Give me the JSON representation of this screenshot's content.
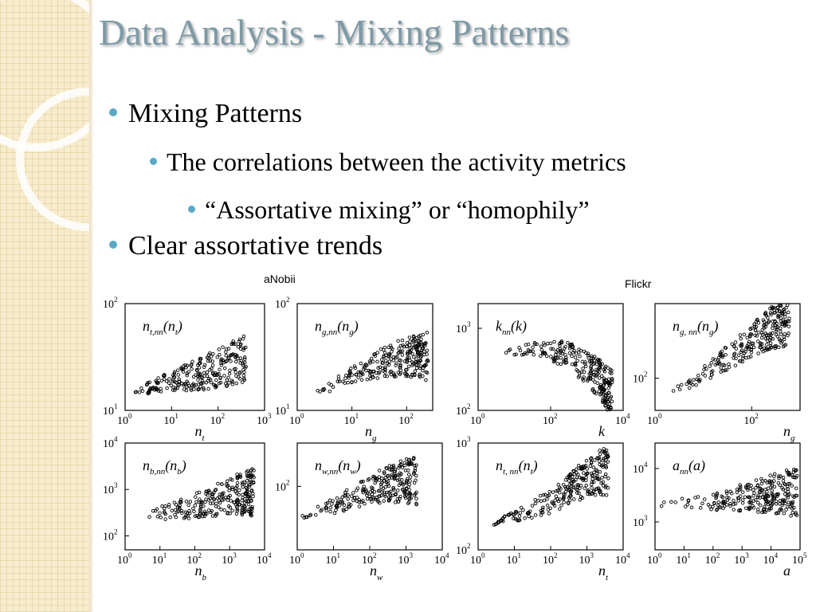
{
  "slide": {
    "title": "Data Analysis - Mixing Patterns",
    "bullets": [
      {
        "text": "Mixing Patterns",
        "level": 1
      },
      {
        "text": "The correlations between the activity metrics",
        "level": 2
      },
      {
        "text": "“Assortative mixing” or “homophily”",
        "level": 3
      },
      {
        "text": "Clear assortative trends",
        "level": 1
      }
    ],
    "accent_color": "#5aa9c6",
    "title_color": "#7d9aa6"
  },
  "figure": {
    "left_label": "aNobii",
    "right_label": "Flickr"
  },
  "chart_data": [
    {
      "type": "scatter",
      "group": "aNobii",
      "label_main": "n",
      "label_sub": "t,nn",
      "label_arg": "n",
      "label_arg_sub": "t",
      "xlabel_main": "n",
      "xlabel_sub": "t",
      "xscale": "log",
      "yscale": "log",
      "xlim": [
        1,
        1000
      ],
      "ylim": [
        10,
        100
      ],
      "x_ticks": [
        "10",
        "10",
        "10",
        "10"
      ],
      "x_tick_exp": [
        "0",
        "1",
        "2",
        "3"
      ],
      "y_ticks": [
        "10",
        "10"
      ],
      "y_tick_exp": [
        "2",
        "1"
      ],
      "trend": [
        [
          1.5,
          15
        ],
        [
          5,
          17
        ],
        [
          20,
          20
        ],
        [
          100,
          25
        ],
        [
          400,
          30
        ]
      ]
    },
    {
      "type": "scatter",
      "group": "aNobii",
      "label_main": "n",
      "label_sub": "g,nn",
      "label_arg": "n",
      "label_arg_sub": "g",
      "xlabel_main": "n",
      "xlabel_sub": "g",
      "xscale": "log",
      "yscale": "log",
      "xlim": [
        1,
        300
      ],
      "ylim": [
        10,
        100
      ],
      "x_ticks": [
        "10",
        "10",
        "10"
      ],
      "x_tick_exp": [
        "0",
        "1",
        "2"
      ],
      "y_ticks": [
        "10",
        "10"
      ],
      "y_tick_exp": [
        "2",
        "1"
      ],
      "trend": [
        [
          2,
          14
        ],
        [
          8,
          20
        ],
        [
          30,
          27
        ],
        [
          100,
          32
        ],
        [
          250,
          33
        ]
      ]
    },
    {
      "type": "scatter",
      "group": "Flickr",
      "label_main": "k",
      "label_sub": "nn",
      "label_arg": "k",
      "label_arg_sub": "",
      "xlabel_main": "k",
      "xlabel_sub": "",
      "xscale": "log",
      "yscale": "log",
      "xlim": [
        1,
        10000
      ],
      "ylim": [
        100,
        2000
      ],
      "x_ticks": [
        "10",
        "10",
        "10"
      ],
      "x_tick_exp": [
        "0",
        "2",
        "4"
      ],
      "y_ticks": [
        "10",
        "10"
      ],
      "y_tick_exp": [
        "3",
        "2"
      ],
      "trend": [
        [
          5,
          500
        ],
        [
          50,
          560
        ],
        [
          300,
          480
        ],
        [
          2000,
          250
        ],
        [
          5000,
          150
        ]
      ]
    },
    {
      "type": "scatter",
      "group": "Flickr",
      "label_main": "n",
      "label_sub": "g, nn",
      "label_arg": "n",
      "label_arg_sub": "g",
      "xlabel_main": "n",
      "xlabel_sub": "g",
      "xscale": "log",
      "yscale": "log",
      "xlim": [
        1,
        1000
      ],
      "ylim": [
        50,
        500
      ],
      "x_ticks": [
        "10",
        "10"
      ],
      "x_tick_exp": [
        "0",
        "2"
      ],
      "y_ticks": [
        "10"
      ],
      "y_tick_exp": [
        "2"
      ],
      "trend": [
        [
          2,
          70
        ],
        [
          10,
          110
        ],
        [
          50,
          180
        ],
        [
          200,
          280
        ],
        [
          600,
          350
        ]
      ]
    },
    {
      "type": "scatter",
      "group": "aNobii",
      "label_main": "n",
      "label_sub": "b,nn",
      "label_arg": "n",
      "label_arg_sub": "b",
      "xlabel_main": "n",
      "xlabel_sub": "b",
      "xscale": "log",
      "yscale": "log",
      "xlim": [
        1,
        10000
      ],
      "ylim": [
        50,
        10000
      ],
      "x_ticks": [
        "10",
        "10",
        "10",
        "10",
        "10"
      ],
      "x_tick_exp": [
        "0",
        "1",
        "2",
        "3",
        "4"
      ],
      "y_ticks": [
        "10",
        "10",
        "10"
      ],
      "y_tick_exp": [
        "4",
        "3",
        "2"
      ],
      "trend": [
        [
          1,
          300
        ],
        [
          20,
          330
        ],
        [
          200,
          500
        ],
        [
          1500,
          800
        ],
        [
          5000,
          900
        ]
      ]
    },
    {
      "type": "scatter",
      "group": "aNobii",
      "label_main": "n",
      "label_sub": "w,nn",
      "label_arg": "n",
      "label_arg_sub": "w",
      "xlabel_main": "n",
      "xlabel_sub": "w",
      "xscale": "log",
      "yscale": "log",
      "xlim": [
        1,
        10000
      ],
      "ylim": [
        20,
        300
      ],
      "x_ticks": [
        "10",
        "10",
        "10",
        "10",
        "10"
      ],
      "x_tick_exp": [
        "0",
        "1",
        "2",
        "3",
        "4"
      ],
      "y_ticks": [
        "10"
      ],
      "y_tick_exp": [
        "2"
      ],
      "trend": [
        [
          1,
          45
        ],
        [
          10,
          60
        ],
        [
          80,
          90
        ],
        [
          500,
          110
        ],
        [
          2000,
          120
        ]
      ]
    },
    {
      "type": "scatter",
      "group": "Flickr",
      "label_main": "n",
      "label_sub": "t, nn",
      "label_arg": "n",
      "label_arg_sub": "t",
      "xlabel_main": "n",
      "xlabel_sub": "t",
      "xscale": "log",
      "yscale": "log",
      "xlim": [
        1,
        10000
      ],
      "ylim": [
        100,
        1000
      ],
      "x_ticks": [
        "10",
        "10",
        "10",
        "10",
        "10"
      ],
      "x_tick_exp": [
        "0",
        "1",
        "2",
        "3",
        "4"
      ],
      "y_ticks": [
        "10",
        "10"
      ],
      "y_tick_exp": [
        "3",
        "2"
      ],
      "trend": [
        [
          2,
          170
        ],
        [
          20,
          220
        ],
        [
          200,
          320
        ],
        [
          1000,
          480
        ],
        [
          4000,
          550
        ]
      ]
    },
    {
      "type": "scatter",
      "group": "Flickr",
      "label_main": "a",
      "label_sub": "nn",
      "label_arg": "a",
      "label_arg_sub": "",
      "xlabel_main": "a",
      "xlabel_sub": "",
      "xscale": "log",
      "yscale": "log",
      "xlim": [
        1,
        100000
      ],
      "ylim": [
        300,
        30000
      ],
      "x_ticks": [
        "10",
        "10",
        "10",
        "10",
        "10",
        "10"
      ],
      "x_tick_exp": [
        "0",
        "1",
        "2",
        "3",
        "4",
        "5"
      ],
      "y_ticks": [
        "10",
        "10"
      ],
      "y_tick_exp": [
        "4",
        "3"
      ],
      "trend": [
        [
          1,
          2200
        ],
        [
          100,
          2300
        ],
        [
          1000,
          2800
        ],
        [
          10000,
          3300
        ],
        [
          80000,
          3500
        ]
      ]
    }
  ]
}
